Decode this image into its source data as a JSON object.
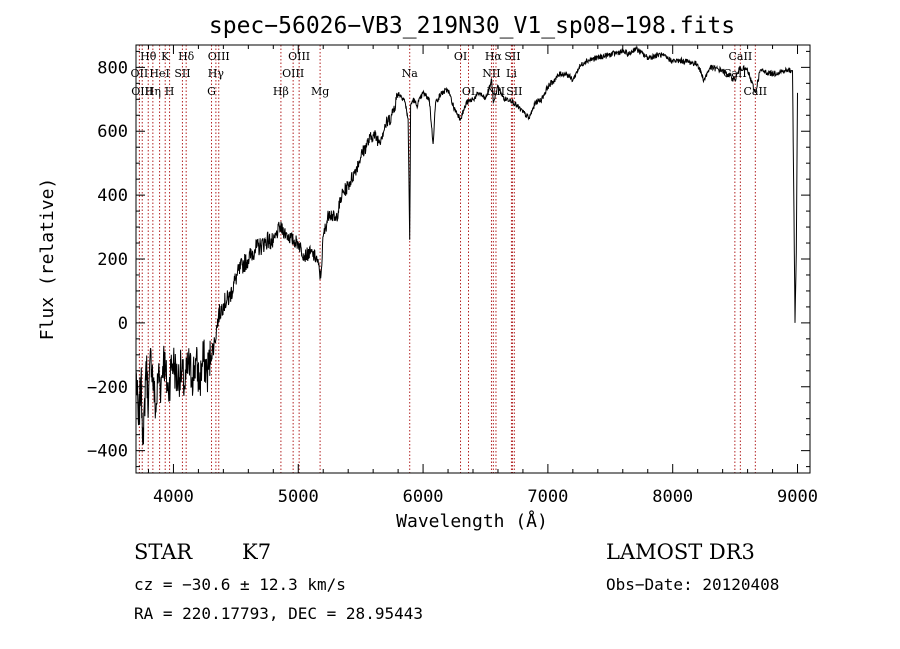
{
  "chart_data": {
    "type": "line",
    "title": "spec−56026−VB3_219N30_V1_sp08−198.fits",
    "xlabel": "Wavelength (Å)",
    "ylabel": "Flux (relative)",
    "xlim": [
      3700,
      9100
    ],
    "ylim": [
      -470,
      870
    ],
    "xticks": [
      4000,
      5000,
      6000,
      7000,
      8000,
      9000
    ],
    "xtick_labels": [
      "4000",
      "5000",
      "6000",
      "7000",
      "8000",
      "9000"
    ],
    "yticks": [
      -400,
      -200,
      0,
      200,
      400,
      600,
      800
    ],
    "ytick_labels": [
      "−400",
      "−200",
      "0",
      "200",
      "400",
      "600",
      "800"
    ],
    "grid": false,
    "series": [
      {
        "name": "flux",
        "x": [
          3700,
          3720,
          3740,
          3760,
          3780,
          3800,
          3820,
          3840,
          3860,
          3880,
          3900,
          3920,
          3940,
          3960,
          3980,
          4000,
          4030,
          4060,
          4090,
          4120,
          4150,
          4180,
          4210,
          4240,
          4270,
          4300,
          4330,
          4360,
          4400,
          4450,
          4500,
          4550,
          4600,
          4650,
          4700,
          4750,
          4800,
          4850,
          4900,
          4950,
          5000,
          5050,
          5100,
          5150,
          5180,
          5200,
          5250,
          5300,
          5350,
          5400,
          5450,
          5500,
          5550,
          5600,
          5650,
          5700,
          5750,
          5800,
          5850,
          5880,
          5893,
          5900,
          5920,
          5950,
          6000,
          6050,
          6080,
          6100,
          6150,
          6200,
          6250,
          6300,
          6350,
          6400,
          6450,
          6500,
          6550,
          6563,
          6600,
          6650,
          6700,
          6750,
          6800,
          6850,
          6900,
          6950,
          7000,
          7050,
          7100,
          7150,
          7200,
          7250,
          7300,
          7400,
          7500,
          7600,
          7650,
          7700,
          7800,
          7900,
          8000,
          8100,
          8200,
          8250,
          8300,
          8400,
          8498,
          8542,
          8600,
          8662,
          8700,
          8800,
          8900,
          8960,
          8980,
          8990,
          9000
        ],
        "values": [
          -150,
          -320,
          -180,
          -380,
          -120,
          -250,
          -90,
          -200,
          -280,
          -150,
          -200,
          -100,
          -170,
          -220,
          -140,
          -120,
          -180,
          -150,
          -200,
          -130,
          -170,
          -120,
          -190,
          -110,
          -160,
          -100,
          -60,
          20,
          60,
          80,
          140,
          180,
          200,
          230,
          240,
          260,
          250,
          300,
          280,
          260,
          250,
          210,
          220,
          200,
          140,
          270,
          350,
          320,
          400,
          430,
          470,
          520,
          560,
          590,
          570,
          620,
          650,
          720,
          700,
          640,
          260,
          680,
          700,
          680,
          720,
          700,
          560,
          690,
          720,
          730,
          670,
          640,
          690,
          700,
          720,
          700,
          760,
          690,
          740,
          700,
          700,
          680,
          660,
          640,
          690,
          700,
          740,
          760,
          780,
          780,
          760,
          800,
          820,
          830,
          840,
          850,
          840,
          860,
          830,
          840,
          820,
          820,
          810,
          760,
          800,
          790,
          760,
          800,
          790,
          720,
          790,
          780,
          790,
          790,
          0,
          220,
          720
        ]
      }
    ],
    "annotations": [
      {
        "label": "Hθ",
        "x": 3798,
        "row": 1
      },
      {
        "label": "OII",
        "x": 3727,
        "row": 2
      },
      {
        "label": "OIII",
        "x": 3750,
        "row": 3
      },
      {
        "label": "K",
        "x": 3934,
        "row": 1
      },
      {
        "label": "HeI",
        "x": 3889,
        "row": 2
      },
      {
        "label": "Hη",
        "x": 3835,
        "row": 3
      },
      {
        "label": "Hδ",
        "x": 4102,
        "row": 1
      },
      {
        "label": "SII",
        "x": 4072,
        "row": 2
      },
      {
        "label": "H",
        "x": 3969,
        "row": 3
      },
      {
        "label": "OIII",
        "x": 4363,
        "row": 1
      },
      {
        "label": "Hγ",
        "x": 4340,
        "row": 2
      },
      {
        "label": "G",
        "x": 4305,
        "row": 3
      },
      {
        "label": "OIII",
        "x": 5007,
        "row": 1
      },
      {
        "label": "OIII",
        "x": 4959,
        "row": 2
      },
      {
        "label": "Hβ",
        "x": 4861,
        "row": 3
      },
      {
        "label": "Mg",
        "x": 5175,
        "row": 3
      },
      {
        "label": "Na",
        "x": 5893,
        "row": 2
      },
      {
        "label": "OI",
        "x": 6300,
        "row": 1
      },
      {
        "label": "OI",
        "x": 6364,
        "row": 3
      },
      {
        "label": "Hα",
        "x": 6563,
        "row": 1
      },
      {
        "label": "SII",
        "x": 6716,
        "row": 1
      },
      {
        "label": "NII",
        "x": 6548,
        "row": 2
      },
      {
        "label": "Li",
        "x": 6708,
        "row": 2
      },
      {
        "label": "NII",
        "x": 6584,
        "row": 3
      },
      {
        "label": "SII",
        "x": 6731,
        "row": 3
      },
      {
        "label": "CaII",
        "x": 8542,
        "row": 1
      },
      {
        "label": "CaII",
        "x": 8498,
        "row": 2
      },
      {
        "label": "CaII",
        "x": 8662,
        "row": 3
      }
    ]
  },
  "info": {
    "object_class": "STAR",
    "subclass": "K7",
    "survey": "LAMOST DR3",
    "redshift": "cz = −30.6 ± 12.3 km/s",
    "obs_date": "Obs−Date: 20120408",
    "coords": "RA = 220.17793, DEC =  28.95443"
  },
  "colors": {
    "line_marker": "#b22222",
    "spectrum": "#000000"
  }
}
